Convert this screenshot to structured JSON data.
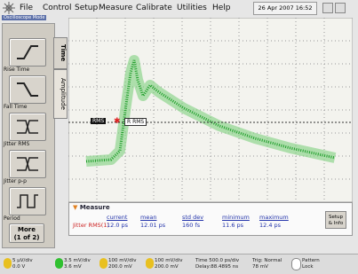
{
  "menu": [
    "File",
    "Control",
    "Setup",
    "Measure",
    "Calibrate",
    "Utilities",
    "Help"
  ],
  "datetime": "26 Apr 2007  16:52",
  "mode": "Oscilloscope Mode",
  "tools": [
    "Rise Time",
    "Fall Time",
    "Jitter RMS",
    "Jitter p-p",
    "Period"
  ],
  "more": [
    "More",
    "(1 of 2)"
  ],
  "tabs": [
    "Time",
    "Amplitude"
  ],
  "markers": [
    "RMS",
    "R RMS"
  ],
  "measure": {
    "title": "Measure",
    "headers": [
      "current",
      "mean",
      "std dev",
      "minimum",
      "maximum"
    ],
    "row": {
      "name": "Jitter RMS(1)",
      "values": [
        "12.0 ps",
        "12.01 ps",
        "160 fs",
        "11.6 ps",
        "12.4 ps"
      ]
    },
    "setup": [
      "Setup",
      "& Info"
    ]
  },
  "status": [
    [
      "5 µV/div",
      "0.0 V"
    ],
    [
      "3.5 mV/div",
      "3.6 mV"
    ],
    [
      "100 mV/div",
      "200.0 mV"
    ],
    [
      "100 mV/div",
      "200.0 mV"
    ],
    [
      "Time 500.0 ps/div",
      "Delay:88.4895 ns"
    ],
    [
      "Trig: Normal",
      "78 mV"
    ],
    [
      "Pattern",
      "Lock"
    ]
  ]
}
